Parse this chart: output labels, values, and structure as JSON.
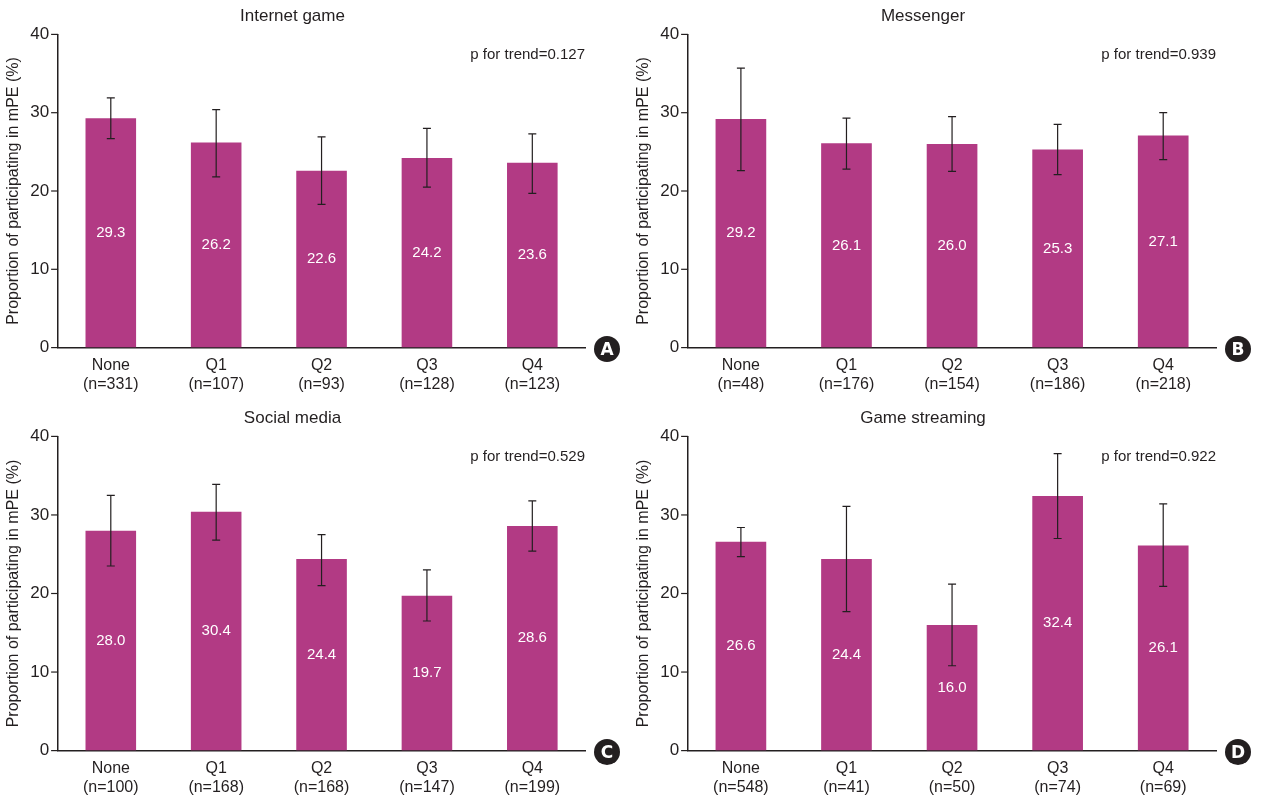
{
  "chart_data": [
    {
      "type": "bar",
      "title": "Internet game",
      "ylabel": "Proportion of participating in mPE (%)",
      "categories": [
        "None\n(n=331)",
        "Q1\n(n=107)",
        "Q2\n(n=93)",
        "Q3\n(n=128)",
        "Q4\n(n=123)"
      ],
      "values": [
        29.3,
        26.2,
        22.6,
        24.2,
        23.6
      ],
      "value_labels": [
        "29.3",
        "26.2",
        "22.6",
        "24.2",
        "23.6"
      ],
      "errors": [
        [
          26.7,
          31.9
        ],
        [
          21.8,
          30.4
        ],
        [
          18.3,
          26.9
        ],
        [
          20.5,
          28.0
        ],
        [
          19.7,
          27.3
        ]
      ],
      "color": "#b23a84",
      "ylim": [
        0,
        40
      ],
      "yticks": [
        0,
        10,
        20,
        30,
        40
      ],
      "grid": false,
      "legend": false,
      "annotations": [
        "p for trend=0.127",
        "A"
      ]
    },
    {
      "type": "bar",
      "title": "Messenger",
      "ylabel": "Proportion of participating in mPE (%)",
      "categories": [
        "None\n(n=48)",
        "Q1\n(n=176)",
        "Q2\n(n=154)",
        "Q3\n(n=186)",
        "Q4\n(n=218)"
      ],
      "values": [
        29.2,
        26.1,
        26,
        25.3,
        27.1
      ],
      "value_labels": [
        "29.2",
        "26.1",
        "26.0",
        "25.3",
        "27.1"
      ],
      "errors": [
        [
          22.6,
          35.7
        ],
        [
          22.8,
          29.3
        ],
        [
          22.5,
          29.5
        ],
        [
          22.1,
          28.5
        ],
        [
          24.0,
          30.0
        ]
      ],
      "color": "#b23a84",
      "ylim": [
        0,
        40
      ],
      "yticks": [
        0,
        10,
        20,
        30,
        40
      ],
      "grid": false,
      "legend": false,
      "annotations": [
        "p for trend=0.939",
        "B"
      ]
    },
    {
      "type": "bar",
      "title": "Social media",
      "ylabel": "Proportion of participating in mPE (%)",
      "categories": [
        "None\n(n=100)",
        "Q1\n(n=168)",
        "Q2\n(n=168)",
        "Q3\n(n=147)",
        "Q4\n(n=199)"
      ],
      "values": [
        28,
        30.4,
        24.4,
        19.7,
        28.6
      ],
      "value_labels": [
        "28.0",
        "30.4",
        "24.4",
        "19.7",
        "28.6"
      ],
      "errors": [
        [
          23.5,
          32.5
        ],
        [
          26.8,
          33.9
        ],
        [
          21.0,
          27.5
        ],
        [
          16.5,
          23.0
        ],
        [
          25.4,
          31.8
        ]
      ],
      "color": "#b23a84",
      "ylim": [
        0,
        40
      ],
      "yticks": [
        0,
        10,
        20,
        30,
        40
      ],
      "grid": false,
      "legend": false,
      "annotations": [
        "p for trend=0.529",
        "C"
      ]
    },
    {
      "type": "bar",
      "title": "Game streaming",
      "ylabel": "Proportion of participating in mPE (%)",
      "categories": [
        "None\n(n=548)",
        "Q1\n(n=41)",
        "Q2\n(n=50)",
        "Q3\n(n=74)",
        "Q4\n(n=69)"
      ],
      "values": [
        26.6,
        24.4,
        16,
        32.4,
        26.1
      ],
      "value_labels": [
        "26.6",
        "24.4",
        "16.0",
        "32.4",
        "26.1"
      ],
      "errors": [
        [
          24.7,
          28.4
        ],
        [
          17.7,
          31.1
        ],
        [
          10.8,
          21.2
        ],
        [
          27.0,
          37.8
        ],
        [
          20.9,
          31.4
        ]
      ],
      "color": "#b23a84",
      "ylim": [
        0,
        40
      ],
      "yticks": [
        0,
        10,
        20,
        30,
        40
      ],
      "grid": false,
      "legend": false,
      "annotations": [
        "p for trend=0.922",
        "D"
      ]
    }
  ]
}
